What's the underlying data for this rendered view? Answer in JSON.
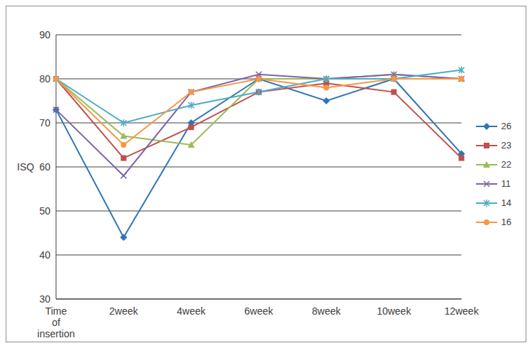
{
  "chart_data": {
    "type": "line",
    "y_label": "ISQ",
    "categories": [
      "Time of insertion",
      "2week",
      "4week",
      "6week",
      "8week",
      "10week",
      "12week"
    ],
    "ylim": [
      30,
      90
    ],
    "yticks": [
      30,
      40,
      50,
      60,
      70,
      80,
      90
    ],
    "grid": true,
    "legend": "right",
    "series": [
      {
        "name": "26",
        "color": "#2e75b6",
        "marker": "diamond",
        "values": [
          73,
          44,
          70,
          80,
          75,
          80,
          63
        ]
      },
      {
        "name": "23",
        "color": "#c0504d",
        "marker": "square",
        "values": [
          80,
          62,
          69,
          77,
          79,
          77,
          62
        ]
      },
      {
        "name": "22",
        "color": "#9bbb59",
        "marker": "triangle",
        "values": [
          80,
          67,
          65,
          80,
          80,
          81,
          80
        ]
      },
      {
        "name": "11",
        "color": "#8064a2",
        "marker": "x",
        "values": [
          73,
          58,
          77,
          81,
          80,
          81,
          80
        ]
      },
      {
        "name": "14",
        "color": "#4bacc6",
        "marker": "star",
        "values": [
          80,
          70,
          74,
          77,
          80,
          80,
          82
        ]
      },
      {
        "name": "16",
        "color": "#f79646",
        "marker": "circle",
        "values": [
          80,
          65,
          77,
          80,
          78,
          80,
          80
        ]
      }
    ]
  }
}
